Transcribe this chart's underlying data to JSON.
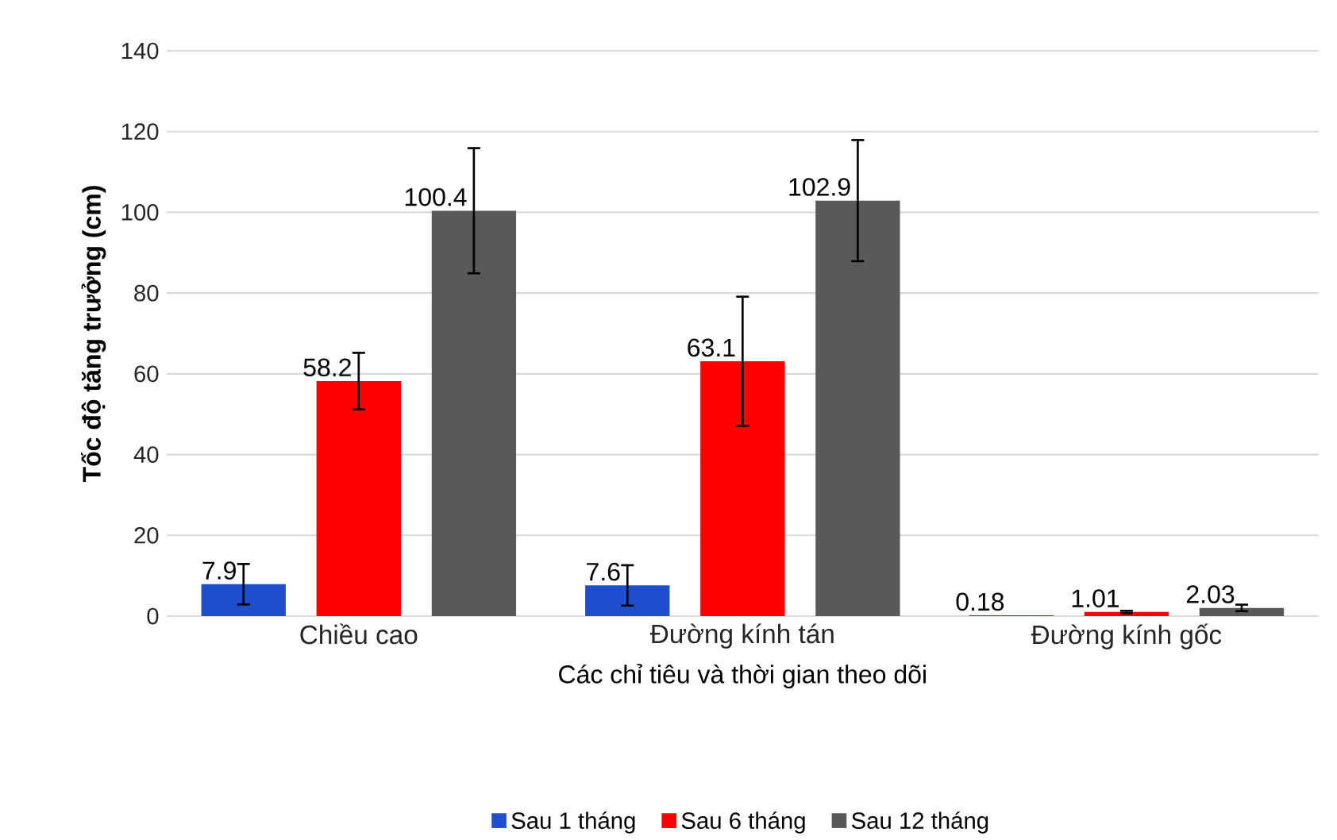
{
  "chart_data": {
    "type": "bar",
    "xlabel": "Các chỉ tiêu và thời gian theo dõi",
    "ylabel": "Tốc độ tăng trưởng (cm)",
    "categories": [
      "Chiều cao",
      "Đường kính tán",
      "Đường kính gốc"
    ],
    "series": [
      {
        "name": "Sau 1 tháng",
        "color": "#1f4fd1",
        "values": [
          7.9,
          7.6,
          0.18
        ],
        "errors": [
          5,
          5,
          null
        ]
      },
      {
        "name": "Sau 6 tháng",
        "color": "#ff0000",
        "values": [
          58.2,
          63.1,
          1.01
        ],
        "errors": [
          7,
          16,
          0.3
        ]
      },
      {
        "name": "Sau 12 tháng",
        "color": "#595959",
        "values": [
          100.4,
          102.9,
          2.03
        ],
        "errors": [
          15.5,
          15,
          0.8
        ]
      }
    ],
    "ylim": [
      0,
      140
    ],
    "yticks": [
      0,
      20,
      40,
      60,
      80,
      100,
      120,
      140
    ],
    "grid": "y",
    "legend": "bottom",
    "data_labels": true
  }
}
